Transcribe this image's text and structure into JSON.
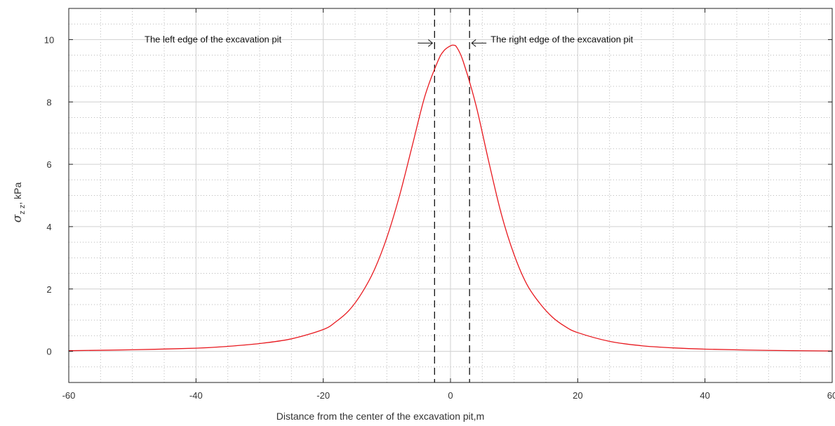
{
  "chart_data": {
    "type": "line",
    "title": "",
    "xlabel": "Distance from the center of the excavation pit,m",
    "ylabel_symbol": "σ",
    "ylabel_subscript": "z z",
    "ylabel_unit": ", kPa",
    "xlim": [
      -60,
      60
    ],
    "ylim": [
      -1,
      11
    ],
    "xticks": [
      -60,
      -40,
      -20,
      0,
      20,
      40,
      60
    ],
    "yticks": [
      0,
      2,
      4,
      6,
      8,
      10
    ],
    "grid": true,
    "minor_grid": true,
    "series": [
      {
        "color": "#e8191f",
        "x": [
          -60,
          -50,
          -40,
          -35,
          -30,
          -25,
          -20,
          -18,
          -16,
          -14,
          -12,
          -10,
          -8,
          -6,
          -4,
          -2,
          -1,
          0,
          0.5,
          1,
          2,
          4,
          6,
          8,
          10,
          12,
          14,
          16,
          18,
          20,
          25,
          30,
          35,
          40,
          50,
          60
        ],
        "y": [
          0.02,
          0.05,
          0.1,
          0.16,
          0.25,
          0.4,
          0.7,
          0.95,
          1.3,
          1.85,
          2.6,
          3.65,
          5.0,
          6.6,
          8.2,
          9.3,
          9.65,
          9.8,
          9.82,
          9.75,
          9.3,
          7.9,
          6.1,
          4.4,
          3.1,
          2.15,
          1.55,
          1.1,
          0.8,
          0.6,
          0.32,
          0.18,
          0.11,
          0.07,
          0.03,
          0.01
        ]
      }
    ],
    "annotations": {
      "left_edge_x": -2.5,
      "right_edge_x": 3,
      "left_label": "The left edge of the excavation pit",
      "right_label": "The right edge of the excavation pit"
    }
  }
}
